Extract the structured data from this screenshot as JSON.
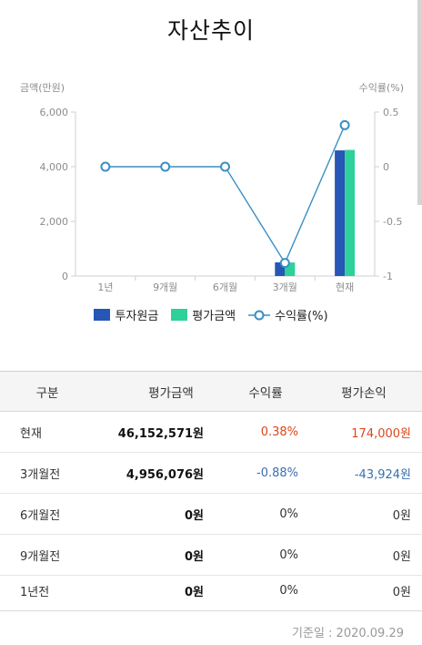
{
  "title": "자산추이",
  "chart_data": {
    "type": "bar+line",
    "categories": [
      "1년",
      "9개월",
      "6개월",
      "3개월",
      "현재"
    ],
    "left_axis_label": "금액(만원)",
    "right_axis_label": "수익률(%)",
    "left_ylim": [
      0,
      6000
    ],
    "left_ticks": [
      "6,000",
      "4,000",
      "2,000",
      "0"
    ],
    "right_ylim": [
      -1,
      0.5
    ],
    "right_ticks": [
      "0.5",
      "0",
      "-0.5",
      "-1"
    ],
    "series": [
      {
        "name": "투자원금",
        "kind": "bar",
        "axis": "left",
        "color": "#2656b6",
        "values": [
          0,
          0,
          0,
          500,
          4598
        ]
      },
      {
        "name": "평가금액",
        "kind": "bar",
        "axis": "left",
        "color": "#2ed19a",
        "values": [
          0,
          0,
          0,
          496,
          4615
        ]
      },
      {
        "name": "수익률(%)",
        "kind": "line",
        "axis": "right",
        "color": "#3a8fc4",
        "values": [
          0,
          0,
          0,
          -0.88,
          0.38
        ]
      }
    ],
    "grid": false,
    "legend_position": "bottom"
  },
  "table": {
    "headers": [
      "구분",
      "평가금액",
      "수익률",
      "평가손익"
    ],
    "rows": [
      {
        "label": "현재",
        "value": "46,152,571원",
        "rate": "0.38%",
        "pnl": "174,000원",
        "tone": "up"
      },
      {
        "label": "3개월전",
        "value": "4,956,076원",
        "rate": "-0.88%",
        "pnl": "-43,924원",
        "tone": "down"
      },
      {
        "label": "6개월전",
        "value": "0원",
        "rate": "0%",
        "pnl": "0원",
        "tone": "neutral"
      },
      {
        "label": "9개월전",
        "value": "0원",
        "rate": "0%",
        "pnl": "0원",
        "tone": "neutral"
      },
      {
        "label": "1년전",
        "value": "0원",
        "rate": "0%",
        "pnl": "0원",
        "tone": "neutral"
      }
    ]
  },
  "footer": "기준일 : 2020.09.29"
}
